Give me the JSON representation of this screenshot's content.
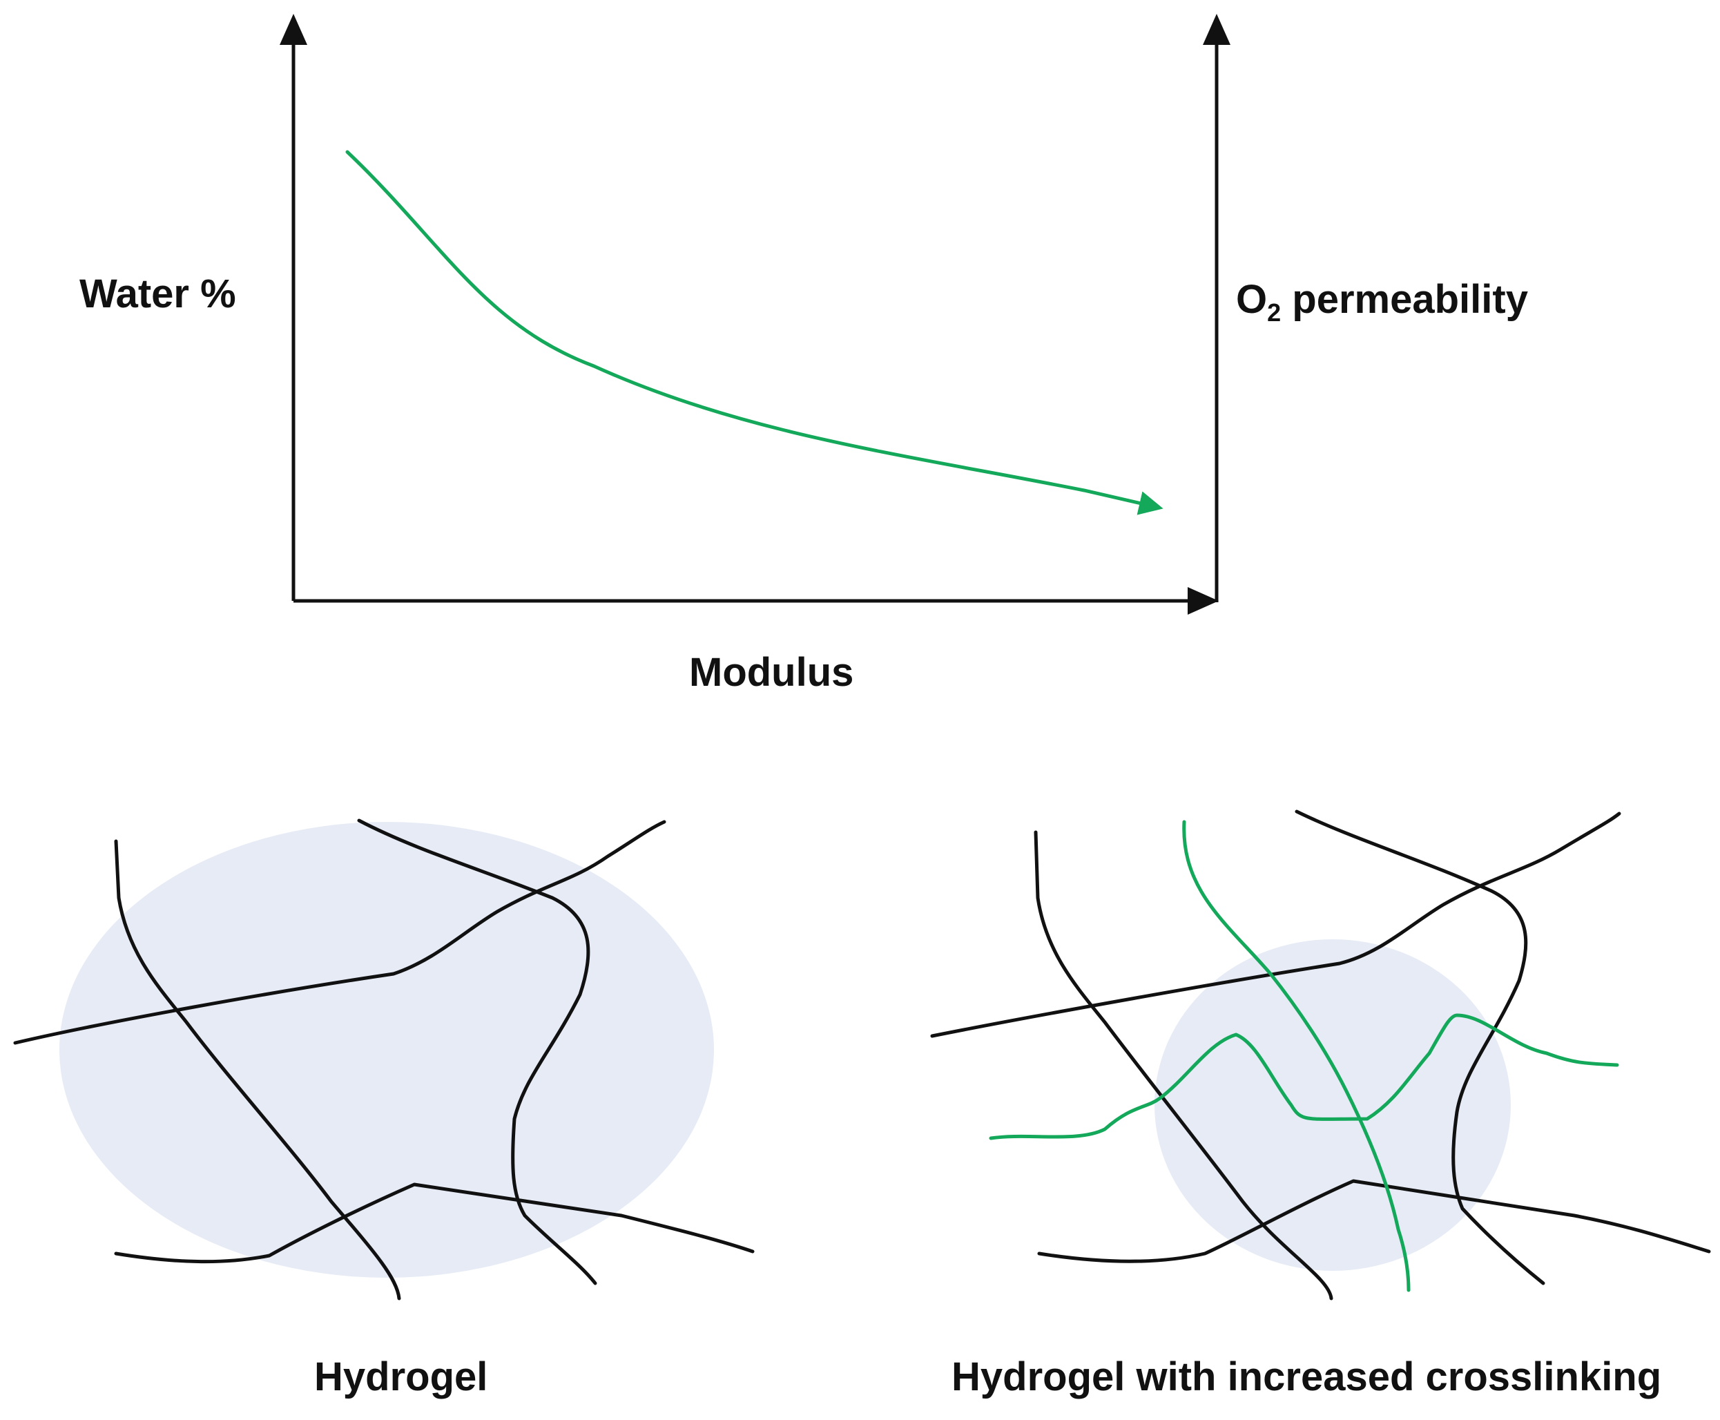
{
  "top_plot": {
    "y_axis_left_label": "Water %",
    "y_axis_right_label_main": "O",
    "y_axis_right_label_sub": "2",
    "y_axis_right_label_rest": " permeability",
    "x_axis_label": "Modulus",
    "curve_color": "#14a85a",
    "axis_color": "#111111"
  },
  "bottom_left": {
    "caption": "Hydrogel",
    "blob_color": "#e6ebf6",
    "chain_color": "#111111"
  },
  "bottom_right": {
    "caption": "Hydrogel with increased crosslinking",
    "blob_color": "#e6ebf6",
    "chain_color": "#111111",
    "crosslink_color": "#14a85a"
  }
}
